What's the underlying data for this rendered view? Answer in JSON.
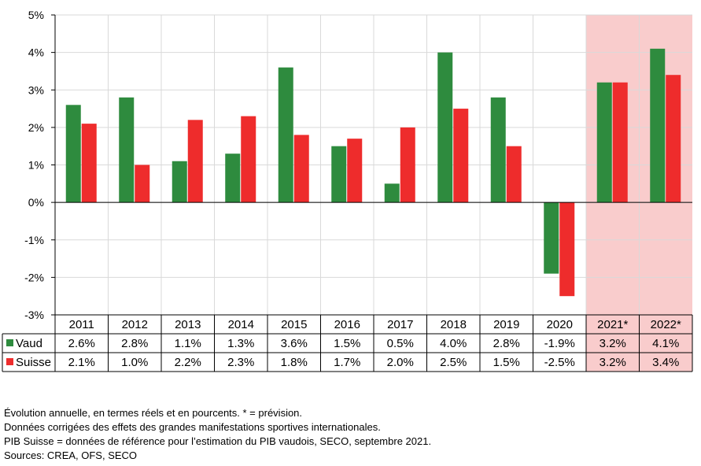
{
  "chart_data": {
    "type": "bar",
    "categories": [
      "2011",
      "2012",
      "2013",
      "2014",
      "2015",
      "2016",
      "2017",
      "2018",
      "2019",
      "2020",
      "2021*",
      "2022*"
    ],
    "series": [
      {
        "name": "Vaud",
        "color": "#2e8b3e",
        "values": [
          2.6,
          2.8,
          1.1,
          1.3,
          3.6,
          1.5,
          0.5,
          4.0,
          2.8,
          -1.9,
          3.2,
          4.1
        ]
      },
      {
        "name": "Suisse",
        "color": "#ee2c2c",
        "values": [
          2.1,
          1.0,
          2.2,
          2.3,
          1.8,
          1.7,
          2.0,
          2.5,
          1.5,
          -2.5,
          3.2,
          3.4
        ]
      }
    ],
    "table_values": {
      "Vaud": [
        "2.6%",
        "2.8%",
        "1.1%",
        "1.3%",
        "3.6%",
        "1.5%",
        "0.5%",
        "4.0%",
        "2.8%",
        "-1.9%",
        "3.2%",
        "4.1%"
      ],
      "Suisse": [
        "2.1%",
        "1.0%",
        "2.2%",
        "2.3%",
        "1.8%",
        "1.7%",
        "2.0%",
        "2.5%",
        "1.5%",
        "-2.5%",
        "3.2%",
        "3.4%"
      ]
    },
    "ylim": [
      -3,
      5
    ],
    "yticks": [
      5,
      4,
      3,
      2,
      1,
      0,
      -1,
      -2,
      -3
    ],
    "ytick_labels": [
      "5%",
      "4%",
      "3%",
      "2%",
      "1%",
      "0%",
      "-1%",
      "-2%",
      "-3%"
    ],
    "grid": true,
    "forecast_categories": [
      "2021*",
      "2022*"
    ],
    "forecast_shade_color": "#f9cccc",
    "xlabel": "",
    "ylabel": "",
    "title": ""
  },
  "notes": [
    "Évolution annuelle, en termes réels et en pourcents. * = prévision.",
    "Données corrigées des effets des grandes manifestations sportives internationales.",
    "PIB Suisse = données de référence pour l’estimation du PIB vaudois, SECO, septembre 2021.",
    "Sources: CREA, OFS, SECO"
  ]
}
